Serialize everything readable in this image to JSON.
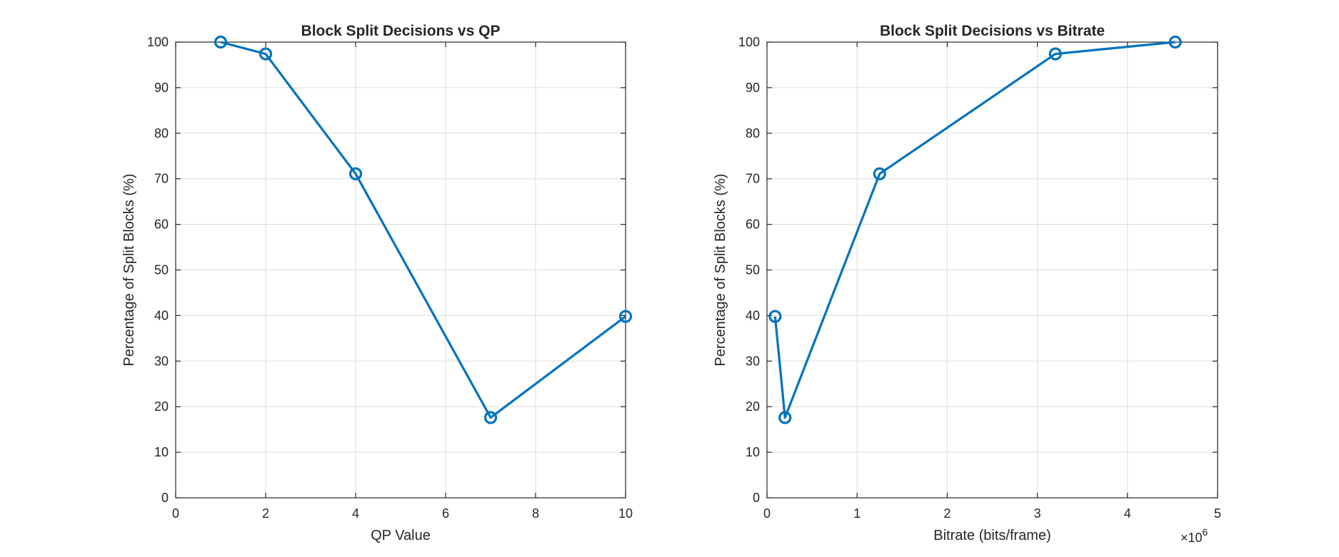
{
  "chart_data": [
    {
      "type": "line",
      "title": "Block Split Decisions vs QP",
      "xlabel": "QP Value",
      "ylabel": "Percentage of Split Blocks (%)",
      "xlim": [
        0,
        10
      ],
      "ylim": [
        0,
        100
      ],
      "xticks": [
        0,
        2,
        4,
        6,
        8,
        10
      ],
      "yticks": [
        0,
        10,
        20,
        30,
        40,
        50,
        60,
        70,
        80,
        90,
        100
      ],
      "x_exponent": "",
      "grid": true,
      "color": "#0072BD",
      "marker": "circle",
      "series": [
        {
          "x": [
            1,
            2,
            4,
            7,
            10
          ],
          "y": [
            100,
            97.4,
            71.1,
            17.6,
            39.8
          ]
        }
      ]
    },
    {
      "type": "line",
      "title": "Block Split Decisions vs Bitrate",
      "xlabel": "Bitrate (bits/frame)",
      "ylabel": "Percentage of Split Blocks (%)",
      "xlim": [
        0,
        5000000
      ],
      "ylim": [
        0,
        100
      ],
      "xticks": [
        0,
        1000000,
        2000000,
        3000000,
        4000000,
        5000000
      ],
      "xtick_labels": [
        "0",
        "1",
        "2",
        "3",
        "4",
        "5"
      ],
      "yticks": [
        0,
        10,
        20,
        30,
        40,
        50,
        60,
        70,
        80,
        90,
        100
      ],
      "x_exponent": "6",
      "grid": true,
      "color": "#0072BD",
      "marker": "circle",
      "series": [
        {
          "x": [
            90000,
            200000,
            1250000,
            3200000,
            4530000
          ],
          "y": [
            39.8,
            17.6,
            71.1,
            97.4,
            100
          ]
        }
      ]
    }
  ]
}
